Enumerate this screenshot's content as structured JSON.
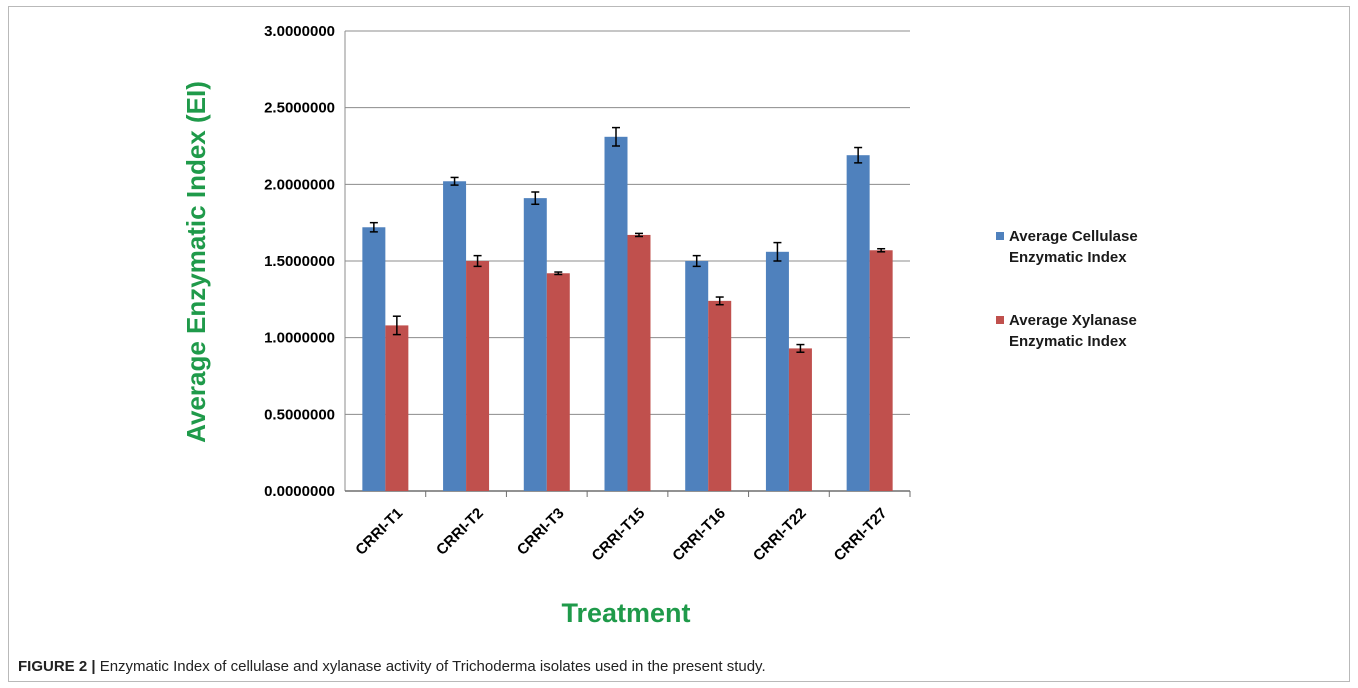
{
  "chart_data": {
    "type": "bar",
    "categories": [
      "CRRI-T1",
      "CRRI-T2",
      "CRRI-T3",
      "CRRI-T15",
      "CRRI-T16",
      "CRRI-T22",
      "CRRI-T27"
    ],
    "series": [
      {
        "name": "Average Cellulase Enzymatic Index",
        "name_lines": [
          "Average Cellulase",
          "Enzymatic Index"
        ],
        "color": "#4f81bd",
        "values": [
          1.72,
          2.02,
          1.91,
          2.31,
          1.5,
          1.56,
          2.19
        ],
        "errors": [
          0.03,
          0.025,
          0.04,
          0.06,
          0.035,
          0.06,
          0.05
        ]
      },
      {
        "name": "Average Xylanase Enzymatic Index",
        "name_lines": [
          "Average Xylanase",
          "Enzymatic Index"
        ],
        "color": "#c0504d",
        "values": [
          1.08,
          1.5,
          1.42,
          1.67,
          1.24,
          0.93,
          1.57
        ],
        "errors": [
          0.06,
          0.035,
          0.008,
          0.01,
          0.025,
          0.025,
          0.01
        ]
      }
    ],
    "ylabel": "Average Enzymatic Index (EI)",
    "xlabel": "Treatment",
    "ylim": [
      0,
      3
    ],
    "yticks": [
      "0.0000000",
      "0.5000000",
      "1.0000000",
      "1.5000000",
      "2.0000000",
      "2.5000000",
      "3.0000000"
    ],
    "grid": true,
    "legend": "right"
  },
  "caption": {
    "label": "FIGURE 2 |",
    "text": " Enzymatic Index of cellulase and xylanase activity of Trichoderma isolates used in the present study."
  }
}
